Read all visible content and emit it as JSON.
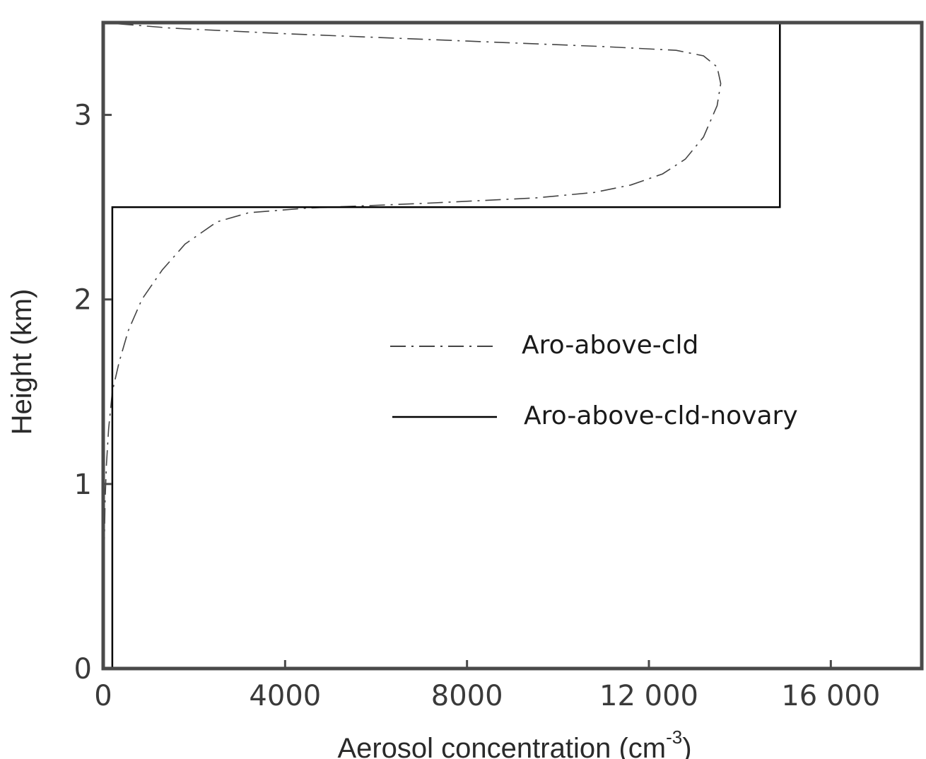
{
  "chart_data": {
    "type": "line",
    "title": "",
    "xlabel": "Aerosol concentration (cm",
    "xlabel_exponent": "-3",
    "xlabel_suffix": ")",
    "ylabel": "Height (km)",
    "xlim": [
      0,
      18000
    ],
    "ylim": [
      0,
      3.5
    ],
    "x_ticks": [
      {
        "value": 0,
        "label": "0"
      },
      {
        "value": 4000,
        "label": "4000"
      },
      {
        "value": 8000,
        "label": "8000"
      },
      {
        "value": 12000,
        "label": "12 000"
      },
      {
        "value": 16000,
        "label": "16 000"
      }
    ],
    "y_ticks": [
      {
        "value": 0,
        "label": "0"
      },
      {
        "value": 1,
        "label": "1"
      },
      {
        "value": 2,
        "label": "2"
      },
      {
        "value": 3,
        "label": "3"
      }
    ],
    "grid": false,
    "legend_position": "center-right",
    "series": [
      {
        "name": "Aro-above-cld",
        "style": "dash-dot",
        "color": "#444444",
        "points": [
          [
            0,
            0
          ],
          [
            10,
            0.3
          ],
          [
            20,
            0.6
          ],
          [
            40,
            0.9
          ],
          [
            70,
            1.1
          ],
          [
            120,
            1.3
          ],
          [
            200,
            1.5
          ],
          [
            350,
            1.66
          ],
          [
            550,
            1.83
          ],
          [
            850,
            2.0
          ],
          [
            1300,
            2.16
          ],
          [
            1800,
            2.3
          ],
          [
            2500,
            2.42
          ],
          [
            3200,
            2.47
          ],
          [
            4500,
            2.495
          ],
          [
            7000,
            2.52
          ],
          [
            9500,
            2.55
          ],
          [
            10800,
            2.58
          ],
          [
            11600,
            2.62
          ],
          [
            12300,
            2.68
          ],
          [
            12800,
            2.76
          ],
          [
            13200,
            2.88
          ],
          [
            13500,
            3.05
          ],
          [
            13580,
            3.17
          ],
          [
            13500,
            3.26
          ],
          [
            13200,
            3.32
          ],
          [
            12600,
            3.35
          ],
          [
            11000,
            3.37
          ],
          [
            8000,
            3.4
          ],
          [
            4000,
            3.44
          ],
          [
            1500,
            3.47
          ],
          [
            0,
            3.5
          ]
        ]
      },
      {
        "name": "Aro-above-cld-novary",
        "style": "solid",
        "color": "#000000",
        "points": [
          [
            200,
            0
          ],
          [
            200,
            2.5
          ],
          [
            14880,
            2.5
          ],
          [
            14880,
            3.5
          ]
        ]
      }
    ]
  }
}
